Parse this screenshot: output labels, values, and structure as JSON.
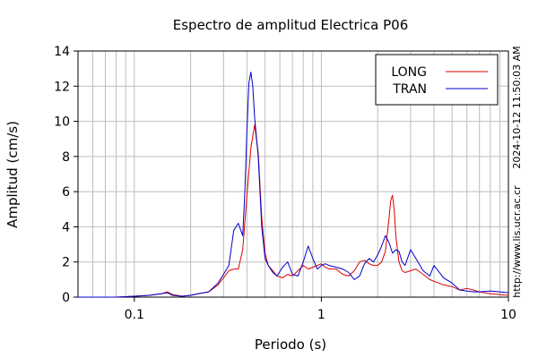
{
  "chart_data": {
    "type": "line",
    "title": "Espectro de amplitud Electrica P06",
    "xlabel": "Periodo (s)",
    "ylabel": "Amplitud (cm/s)",
    "x_scale": "log",
    "xlim": [
      0.05,
      10
    ],
    "ylim": [
      0,
      14
    ],
    "grid": true,
    "legend_position": "top-right",
    "x_ticks": [
      {
        "value": 0.1,
        "label": "0.1"
      },
      {
        "value": 1,
        "label": "1"
      },
      {
        "value": 10,
        "label": "10"
      }
    ],
    "y_ticks": [
      0,
      2,
      4,
      6,
      8,
      10,
      12,
      14
    ],
    "side_text": [
      "2024-10-12 11:50:03 AM",
      "http://www.lis.ucr.ac.cr"
    ],
    "series": [
      {
        "name": "LONG",
        "color": "#dd0000",
        "x": [
          0.05,
          0.08,
          0.1,
          0.12,
          0.14,
          0.15,
          0.16,
          0.18,
          0.2,
          0.22,
          0.25,
          0.28,
          0.3,
          0.32,
          0.34,
          0.36,
          0.38,
          0.4,
          0.42,
          0.44,
          0.46,
          0.48,
          0.5,
          0.52,
          0.55,
          0.58,
          0.62,
          0.66,
          0.7,
          0.75,
          0.8,
          0.85,
          0.9,
          0.95,
          1.0,
          1.05,
          1.1,
          1.2,
          1.3,
          1.4,
          1.5,
          1.6,
          1.7,
          1.8,
          1.9,
          2.0,
          2.1,
          2.2,
          2.3,
          2.35,
          2.4,
          2.45,
          2.5,
          2.6,
          2.7,
          2.8,
          3.0,
          3.2,
          3.5,
          3.8,
          4.0,
          4.5,
          5.0,
          5.5,
          6.0,
          6.5,
          7.0,
          8.0,
          9.0,
          10.0
        ],
        "y": [
          0,
          0,
          0.05,
          0.1,
          0.2,
          0.3,
          0.15,
          0.05,
          0.1,
          0.2,
          0.3,
          0.7,
          1.1,
          1.5,
          1.6,
          1.6,
          2.7,
          5.8,
          8.5,
          9.8,
          8.2,
          4.5,
          2.5,
          1.8,
          1.5,
          1.2,
          1.1,
          1.3,
          1.2,
          1.5,
          1.8,
          1.6,
          1.7,
          1.8,
          1.9,
          1.7,
          1.6,
          1.6,
          1.3,
          1.2,
          1.5,
          2.0,
          2.1,
          1.9,
          1.8,
          1.8,
          2.0,
          2.6,
          4.5,
          5.5,
          5.8,
          5.0,
          3.5,
          2.0,
          1.5,
          1.4,
          1.5,
          1.6,
          1.3,
          1.0,
          0.9,
          0.7,
          0.6,
          0.4,
          0.5,
          0.4,
          0.3,
          0.2,
          0.15,
          0.1
        ]
      },
      {
        "name": "TRAN",
        "color": "#0000cc",
        "x": [
          0.05,
          0.08,
          0.1,
          0.12,
          0.14,
          0.15,
          0.16,
          0.18,
          0.2,
          0.22,
          0.25,
          0.28,
          0.3,
          0.32,
          0.34,
          0.36,
          0.38,
          0.39,
          0.4,
          0.41,
          0.42,
          0.43,
          0.44,
          0.46,
          0.48,
          0.5,
          0.52,
          0.55,
          0.58,
          0.62,
          0.66,
          0.7,
          0.75,
          0.8,
          0.85,
          0.9,
          0.95,
          1.0,
          1.05,
          1.1,
          1.2,
          1.3,
          1.4,
          1.5,
          1.6,
          1.7,
          1.8,
          1.9,
          2.0,
          2.1,
          2.2,
          2.3,
          2.4,
          2.5,
          2.6,
          2.7,
          2.8,
          3.0,
          3.2,
          3.5,
          3.8,
          4.0,
          4.5,
          5.0,
          5.5,
          6.0,
          6.5,
          7.0,
          8.0,
          9.0,
          10.0
        ],
        "y": [
          0,
          0,
          0.05,
          0.1,
          0.2,
          0.25,
          0.1,
          0.05,
          0.1,
          0.2,
          0.3,
          0.8,
          1.3,
          1.8,
          3.8,
          4.2,
          3.5,
          6.0,
          9.5,
          12.2,
          12.8,
          12.0,
          10.2,
          8.0,
          4.0,
          2.2,
          1.8,
          1.4,
          1.2,
          1.7,
          2.0,
          1.3,
          1.2,
          2.0,
          2.9,
          2.2,
          1.6,
          1.8,
          1.9,
          1.8,
          1.7,
          1.6,
          1.4,
          1.0,
          1.2,
          1.9,
          2.2,
          2.0,
          2.4,
          2.9,
          3.5,
          3.1,
          2.5,
          2.7,
          2.6,
          2.0,
          1.8,
          2.7,
          2.2,
          1.5,
          1.2,
          1.8,
          1.1,
          0.8,
          0.4,
          0.35,
          0.3,
          0.3,
          0.35,
          0.3,
          0.25
        ]
      }
    ]
  }
}
